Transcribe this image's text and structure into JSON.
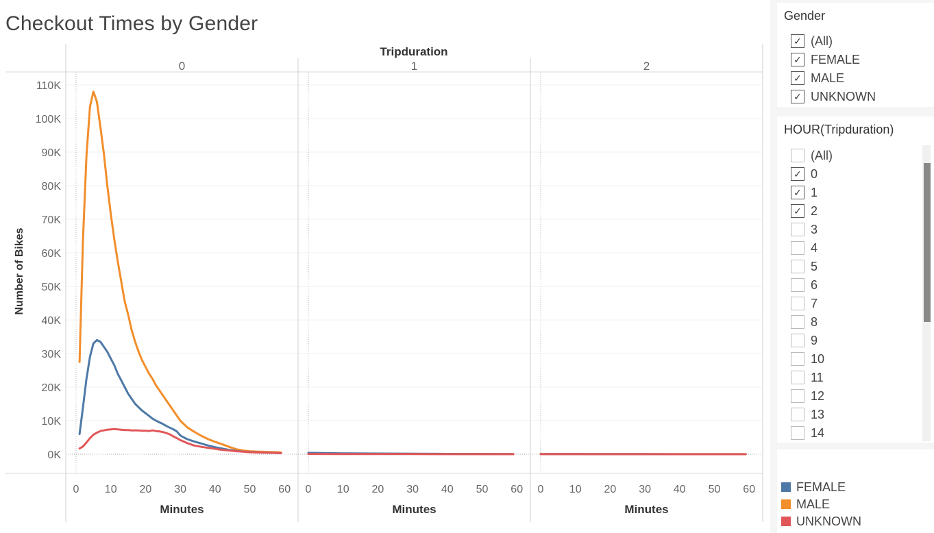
{
  "title": "Checkout Times by Gender",
  "chart_data": {
    "type": "line",
    "title": "Checkout Times by Gender",
    "column_header": "Tripduration",
    "panels": [
      "0",
      "1",
      "2"
    ],
    "xlabel": "Minutes",
    "ylabel": "Number of Bikes",
    "xlim": [
      0,
      60
    ],
    "ylim": [
      0,
      110000
    ],
    "x_ticks": [
      0,
      10,
      20,
      30,
      40,
      50,
      60
    ],
    "y_ticks": [
      0,
      10000,
      20000,
      30000,
      40000,
      50000,
      60000,
      70000,
      80000,
      90000,
      100000,
      110000
    ],
    "y_tick_labels": [
      "0K",
      "10K",
      "20K",
      "30K",
      "40K",
      "50K",
      "60K",
      "70K",
      "80K",
      "90K",
      "100K",
      "110K"
    ],
    "legend_placement": "bottom-right",
    "series": [
      {
        "name": "MALE",
        "color": "#f28e2b",
        "panels": [
          [
            [
              1,
              27500
            ],
            [
              2,
              64000
            ],
            [
              3,
              89000
            ],
            [
              4,
              103500
            ],
            [
              5,
              108000
            ],
            [
              6,
              105000
            ],
            [
              7,
              97500
            ],
            [
              8,
              89500
            ],
            [
              9,
              80000
            ],
            [
              10,
              71500
            ],
            [
              11,
              64000
            ],
            [
              12,
              57500
            ],
            [
              13,
              51500
            ],
            [
              14,
              45500
            ],
            [
              15,
              41500
            ],
            [
              16,
              37000
            ],
            [
              17,
              33500
            ],
            [
              18,
              30500
            ],
            [
              19,
              28000
            ],
            [
              20,
              26000
            ],
            [
              21,
              24000
            ],
            [
              22,
              22500
            ],
            [
              23,
              20500
            ],
            [
              24,
              19000
            ],
            [
              25,
              17500
            ],
            [
              26,
              16000
            ],
            [
              27,
              14500
            ],
            [
              28,
              13000
            ],
            [
              29,
              11500
            ],
            [
              30,
              10000
            ],
            [
              32,
              8000
            ],
            [
              34,
              6700
            ],
            [
              36,
              5500
            ],
            [
              38,
              4500
            ],
            [
              40,
              3700
            ],
            [
              42,
              3000
            ],
            [
              44,
              2200
            ],
            [
              46,
              1500
            ],
            [
              48,
              1100
            ],
            [
              50,
              900
            ],
            [
              52,
              800
            ],
            [
              55,
              700
            ],
            [
              58,
              600
            ],
            [
              59,
              500
            ]
          ],
          [
            [
              0,
              300
            ],
            [
              10,
              200
            ],
            [
              20,
              150
            ],
            [
              30,
              100
            ],
            [
              40,
              80
            ],
            [
              50,
              60
            ],
            [
              59,
              50
            ]
          ],
          [
            [
              0,
              50
            ],
            [
              10,
              40
            ],
            [
              20,
              30
            ],
            [
              30,
              30
            ],
            [
              40,
              20
            ],
            [
              50,
              20
            ],
            [
              59,
              20
            ]
          ]
        ]
      },
      {
        "name": "FEMALE",
        "color": "#4e79a7",
        "panels": [
          [
            [
              1,
              6000
            ],
            [
              2,
              14000
            ],
            [
              3,
              22500
            ],
            [
              4,
              29000
            ],
            [
              5,
              33000
            ],
            [
              6,
              34000
            ],
            [
              7,
              33500
            ],
            [
              8,
              32000
            ],
            [
              9,
              30500
            ],
            [
              10,
              28500
            ],
            [
              11,
              26500
            ],
            [
              12,
              24000
            ],
            [
              13,
              22000
            ],
            [
              14,
              20000
            ],
            [
              15,
              18000
            ],
            [
              16,
              16500
            ],
            [
              17,
              15000
            ],
            [
              18,
              14000
            ],
            [
              19,
              13000
            ],
            [
              20,
              12200
            ],
            [
              21,
              11400
            ],
            [
              22,
              10600
            ],
            [
              23,
              10000
            ],
            [
              24,
              9500
            ],
            [
              25,
              9000
            ],
            [
              26,
              8400
            ],
            [
              27,
              7900
            ],
            [
              28,
              7400
            ],
            [
              29,
              6800
            ],
            [
              30,
              5600
            ],
            [
              31,
              5000
            ],
            [
              32,
              4500
            ],
            [
              34,
              3800
            ],
            [
              36,
              3200
            ],
            [
              38,
              2600
            ],
            [
              40,
              2100
            ],
            [
              42,
              1700
            ],
            [
              44,
              1300
            ],
            [
              46,
              1000
            ],
            [
              48,
              800
            ],
            [
              50,
              650
            ],
            [
              52,
              550
            ],
            [
              55,
              450
            ],
            [
              58,
              350
            ],
            [
              59,
              300
            ]
          ],
          [
            [
              0,
              400
            ],
            [
              5,
              330
            ],
            [
              10,
              270
            ],
            [
              20,
              200
            ],
            [
              30,
              150
            ],
            [
              40,
              110
            ],
            [
              50,
              80
            ],
            [
              59,
              60
            ]
          ],
          [
            [
              0,
              60
            ],
            [
              10,
              50
            ],
            [
              20,
              40
            ],
            [
              30,
              35
            ],
            [
              40,
              30
            ],
            [
              50,
              25
            ],
            [
              59,
              20
            ]
          ]
        ]
      },
      {
        "name": "UNKNOWN",
        "color": "#e15759",
        "panels": [
          [
            [
              1,
              1700
            ],
            [
              2,
              2300
            ],
            [
              3,
              3500
            ],
            [
              4,
              4800
            ],
            [
              5,
              5800
            ],
            [
              6,
              6400
            ],
            [
              7,
              6900
            ],
            [
              8,
              7100
            ],
            [
              9,
              7300
            ],
            [
              10,
              7400
            ],
            [
              11,
              7500
            ],
            [
              12,
              7400
            ],
            [
              13,
              7300
            ],
            [
              14,
              7200
            ],
            [
              15,
              7200
            ],
            [
              16,
              7100
            ],
            [
              17,
              7100
            ],
            [
              18,
              7100
            ],
            [
              19,
              7000
            ],
            [
              20,
              7000
            ],
            [
              21,
              6900
            ],
            [
              22,
              7100
            ],
            [
              23,
              6900
            ],
            [
              24,
              6800
            ],
            [
              25,
              6600
            ],
            [
              26,
              6300
            ],
            [
              27,
              5900
            ],
            [
              28,
              5300
            ],
            [
              29,
              4800
            ],
            [
              30,
              4200
            ],
            [
              32,
              3300
            ],
            [
              34,
              2600
            ],
            [
              36,
              2200
            ],
            [
              38,
              1900
            ],
            [
              40,
              1600
            ],
            [
              42,
              1300
            ],
            [
              44,
              1100
            ],
            [
              46,
              900
            ],
            [
              48,
              750
            ],
            [
              50,
              600
            ],
            [
              55,
              450
            ],
            [
              59,
              300
            ]
          ],
          [
            [
              0,
              80
            ],
            [
              10,
              60
            ],
            [
              20,
              50
            ],
            [
              30,
              40
            ],
            [
              40,
              30
            ],
            [
              50,
              25
            ],
            [
              59,
              20
            ]
          ],
          [
            [
              0,
              20
            ],
            [
              30,
              15
            ],
            [
              59,
              10
            ]
          ]
        ]
      }
    ]
  },
  "filters": {
    "gender": {
      "title": "Gender",
      "items": [
        {
          "label": "(All)",
          "checked": true
        },
        {
          "label": "FEMALE",
          "checked": true
        },
        {
          "label": "MALE",
          "checked": true
        },
        {
          "label": "UNKNOWN",
          "checked": true
        }
      ]
    },
    "hour": {
      "title": "HOUR(Tripduration)",
      "items": [
        {
          "label": "(All)",
          "checked": false
        },
        {
          "label": "0",
          "checked": true
        },
        {
          "label": "1",
          "checked": true
        },
        {
          "label": "2",
          "checked": true
        },
        {
          "label": "3",
          "checked": false
        },
        {
          "label": "4",
          "checked": false
        },
        {
          "label": "5",
          "checked": false
        },
        {
          "label": "6",
          "checked": false
        },
        {
          "label": "7",
          "checked": false
        },
        {
          "label": "8",
          "checked": false
        },
        {
          "label": "9",
          "checked": false
        },
        {
          "label": "10",
          "checked": false
        },
        {
          "label": "11",
          "checked": false
        },
        {
          "label": "12",
          "checked": false
        },
        {
          "label": "13",
          "checked": false
        },
        {
          "label": "14",
          "checked": false
        }
      ]
    }
  },
  "legend": {
    "items": [
      {
        "label": "FEMALE",
        "color": "#4e79a7"
      },
      {
        "label": "MALE",
        "color": "#f28e2b"
      },
      {
        "label": "UNKNOWN",
        "color": "#e15759"
      }
    ]
  },
  "icons": {
    "checkmark": "check-icon"
  }
}
